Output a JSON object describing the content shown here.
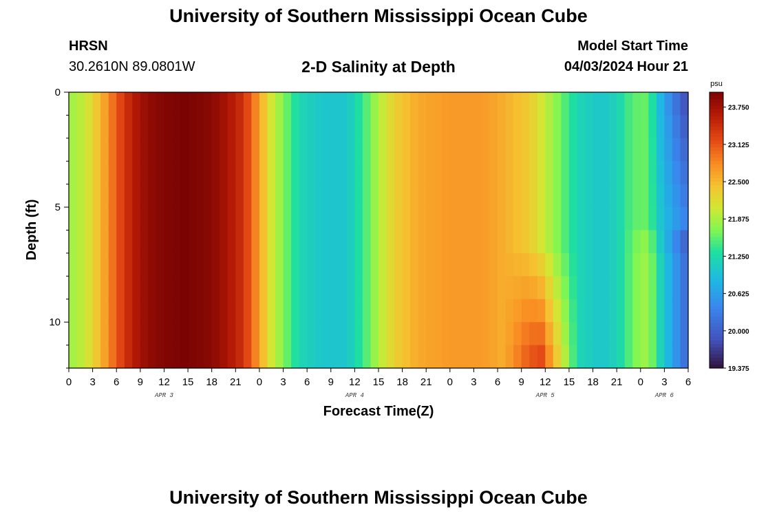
{
  "header": {
    "title": "University of Southern Mississippi Ocean Cube",
    "station_code": "HRSN",
    "station_coords": "30.2610N  89.0801W",
    "chart_heading": "2-D Salinity at Depth",
    "model_start_label": "Model Start Time",
    "model_start_time": "04/03/2024 Hour 21"
  },
  "footer": {
    "title": "University of Southern Mississippi Ocean Cube"
  },
  "chart_data": {
    "type": "heatmap",
    "title": "2-D Salinity at Depth",
    "xlabel": "Forecast Time(Z)",
    "ylabel": "Depth (ft)",
    "x_hour_range": [
      0,
      78
    ],
    "y_range": [
      0,
      12
    ],
    "y_inverted": true,
    "y_ticks": [
      0,
      5,
      10
    ],
    "x_tick_labels": [
      "0",
      "3",
      "6",
      "9",
      "12",
      "15",
      "18",
      "21",
      "0",
      "3",
      "6",
      "9",
      "12",
      "15",
      "18",
      "21",
      "0",
      "3",
      "6",
      "9",
      "12",
      "15",
      "18",
      "21",
      "0",
      "3",
      "6"
    ],
    "day_labels": [
      {
        "label": "APR 3",
        "hour": 12
      },
      {
        "label": "APR 4",
        "hour": 36
      },
      {
        "label": "APR 5",
        "hour": 60
      },
      {
        "label": "APR 6",
        "hour": 75
      }
    ],
    "colorbar": {
      "unit": "psu",
      "min": 19.375,
      "max": 24.0,
      "ticks": [
        "23.750",
        "23.125",
        "22.500",
        "21.875",
        "21.250",
        "20.625",
        "20.000",
        "19.375"
      ]
    },
    "surface_salinity": [
      {
        "hour": 0,
        "psu": 21.8
      },
      {
        "hour": 2,
        "psu": 22.0
      },
      {
        "hour": 4,
        "psu": 22.5
      },
      {
        "hour": 6,
        "psu": 23.1
      },
      {
        "hour": 8,
        "psu": 23.6
      },
      {
        "hour": 10,
        "psu": 23.85
      },
      {
        "hour": 12,
        "psu": 23.95
      },
      {
        "hour": 15,
        "psu": 24.0
      },
      {
        "hour": 18,
        "psu": 23.9
      },
      {
        "hour": 20,
        "psu": 23.7
      },
      {
        "hour": 22,
        "psu": 23.4
      },
      {
        "hour": 23,
        "psu": 23.0
      },
      {
        "hour": 24,
        "psu": 22.7
      },
      {
        "hour": 25,
        "psu": 22.2
      },
      {
        "hour": 27,
        "psu": 21.7
      },
      {
        "hour": 29,
        "psu": 21.2
      },
      {
        "hour": 32,
        "psu": 21.0
      },
      {
        "hour": 35,
        "psu": 21.0
      },
      {
        "hour": 37,
        "psu": 21.4
      },
      {
        "hour": 39,
        "psu": 21.9
      },
      {
        "hour": 41,
        "psu": 22.3
      },
      {
        "hour": 44,
        "psu": 22.6
      },
      {
        "hour": 48,
        "psu": 22.7
      },
      {
        "hour": 52,
        "psu": 22.7
      },
      {
        "hour": 55,
        "psu": 22.55
      },
      {
        "hour": 58,
        "psu": 22.35
      },
      {
        "hour": 60,
        "psu": 22.0
      },
      {
        "hour": 62,
        "psu": 21.6
      },
      {
        "hour": 64,
        "psu": 21.2
      },
      {
        "hour": 67,
        "psu": 21.0
      },
      {
        "hour": 69,
        "psu": 21.15
      },
      {
        "hour": 71,
        "psu": 21.55
      },
      {
        "hour": 73,
        "psu": 21.6
      },
      {
        "hour": 74,
        "psu": 21.0
      },
      {
        "hour": 76,
        "psu": 20.3
      },
      {
        "hour": 78,
        "psu": 19.7
      }
    ]
  }
}
